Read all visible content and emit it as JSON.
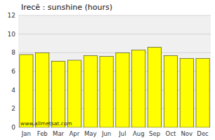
{
  "chart_data": {
    "type": "bar",
    "title": "Irecê : sunshine (hours)",
    "categories": [
      "Jan",
      "Feb",
      "Mar",
      "Apr",
      "May",
      "Jun",
      "Jul",
      "Aug",
      "Sep",
      "Oct",
      "Nov",
      "Dec"
    ],
    "values": [
      7.8,
      8.0,
      7.1,
      7.2,
      7.7,
      7.6,
      8.0,
      8.3,
      8.6,
      7.7,
      7.4,
      7.4
    ],
    "color": "#FFFF00",
    "ylim": [
      0,
      12
    ],
    "yticks": [
      0,
      2,
      4,
      6,
      8,
      10,
      12
    ],
    "grid": true,
    "annotations": [
      "www.allmetsat.com"
    ]
  }
}
